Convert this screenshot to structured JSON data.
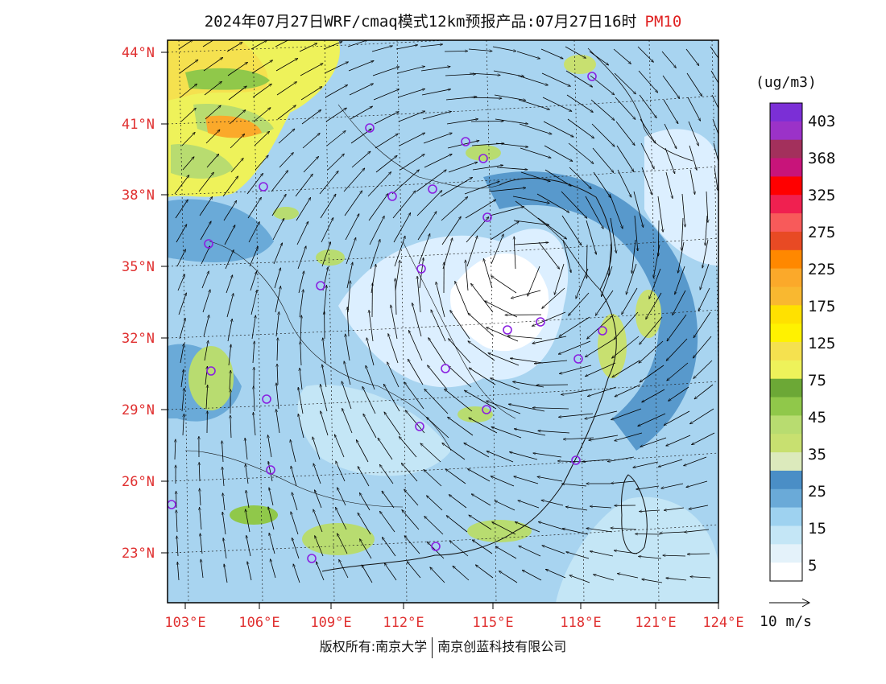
{
  "title": {
    "text": "2024年07月27日WRF/cmaq模式12km预报产品:07月27日16时",
    "variable": "PM10"
  },
  "latitude_labels": [
    "44°N",
    "41°N",
    "38°N",
    "35°N",
    "32°N",
    "29°N",
    "26°N",
    "23°N"
  ],
  "longitude_labels": [
    "103°E",
    "106°E",
    "109°E",
    "112°E",
    "115°E",
    "118°E",
    "121°E",
    "124°E"
  ],
  "colorbar": {
    "unit": "(ug/m3)",
    "labels": [
      "403",
      "368",
      "325",
      "275",
      "225",
      "175",
      "125",
      "75",
      "45",
      "35",
      "25",
      "15",
      "5"
    ],
    "colors": [
      "#7b2fd6",
      "#9b32c8",
      "#a3305c",
      "#c8147a",
      "#ff0000",
      "#f02050",
      "#f85a5a",
      "#e84a24",
      "#ff8800",
      "#fba92a",
      "#f9b830",
      "#ffe100",
      "#fff200",
      "#f5e14f",
      "#eef25a",
      "#6ca836",
      "#90c84a",
      "#b8dc70",
      "#c8e070",
      "#dceabc",
      "#4a8ec6",
      "#6aaad8",
      "#9ed2f0",
      "#c4e6f6",
      "#e4f2fa",
      "#ffffff"
    ]
  },
  "vector_legend": {
    "label": "10 m/s"
  },
  "footer": {
    "left": "版权所有:南京大学",
    "right": "南京创蓝科技有限公司"
  }
}
